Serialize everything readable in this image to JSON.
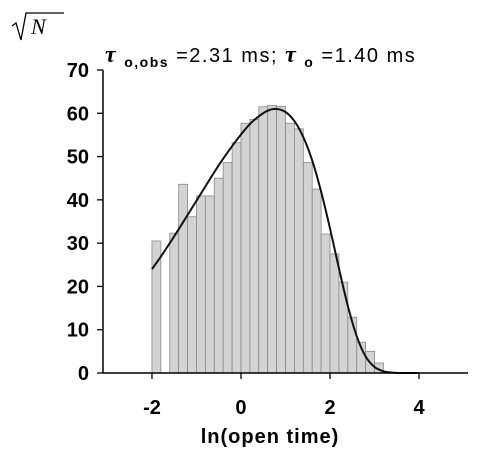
{
  "chart_data": {
    "type": "bar",
    "title": "",
    "xlabel": "ln(open time)",
    "ylabel": "√N",
    "ylabel_symbol": "N",
    "xlim": [
      -3.1,
      5.1
    ],
    "ylim": [
      0,
      70
    ],
    "x_ticks": [
      -2,
      0,
      2,
      4
    ],
    "x_tick_labels": [
      "-2",
      "0",
      "2",
      "4"
    ],
    "y_ticks": [
      0,
      10,
      20,
      30,
      40,
      50,
      60,
      70
    ],
    "y_tick_labels": [
      "0",
      "10",
      "20",
      "30",
      "40",
      "50",
      "60",
      "70"
    ],
    "grid": false,
    "bar_fill": "#d3d3d3",
    "bar_edge": "#888888",
    "curve_color": "#111111",
    "annotation": {
      "tau_symbol": "τ",
      "sub_obs": "o,obs",
      "obs_value": "=2.31 ms; ",
      "sub": "o",
      "value": "=1.40 ms"
    },
    "histogram": {
      "bin_width": 0.2,
      "x": [
        -1.9,
        -1.5,
        -1.3,
        -1.1,
        -0.9,
        -0.7,
        -0.5,
        -0.3,
        -0.1,
        0.1,
        0.3,
        0.5,
        0.7,
        0.9,
        1.1,
        1.3,
        1.5,
        1.7,
        1.9,
        2.1,
        2.3,
        2.5,
        2.7,
        2.9,
        3.1
      ],
      "values": [
        30.5,
        32.3,
        43.6,
        36.1,
        40.9,
        40.9,
        45.0,
        48.6,
        53.2,
        57.7,
        58.6,
        61.5,
        61.8,
        61.6,
        57.7,
        56.4,
        48.6,
        42.5,
        32.1,
        27.5,
        21.0,
        12.9,
        7.1,
        5.0,
        2.3
      ]
    },
    "fit_curve": {
      "x": [
        -2.0,
        -1.8,
        -1.6,
        -1.4,
        -1.2,
        -1.0,
        -0.8,
        -0.6,
        -0.4,
        -0.2,
        0.0,
        0.2,
        0.4,
        0.6,
        0.8,
        1.0,
        1.2,
        1.4,
        1.6,
        1.8,
        2.0,
        2.2,
        2.4,
        2.6,
        2.8,
        3.0,
        3.2,
        3.4,
        3.6,
        3.8,
        4.0
      ],
      "y": [
        24.0,
        26.9,
        30.0,
        33.2,
        36.5,
        39.8,
        43.1,
        46.4,
        49.5,
        52.4,
        55.1,
        57.5,
        59.3,
        60.6,
        61.0,
        60.3,
        58.2,
        54.5,
        49.1,
        41.9,
        33.4,
        24.2,
        15.5,
        8.5,
        3.8,
        1.4,
        0.4,
        0.1,
        0.0,
        0.0,
        0.0
      ]
    }
  }
}
